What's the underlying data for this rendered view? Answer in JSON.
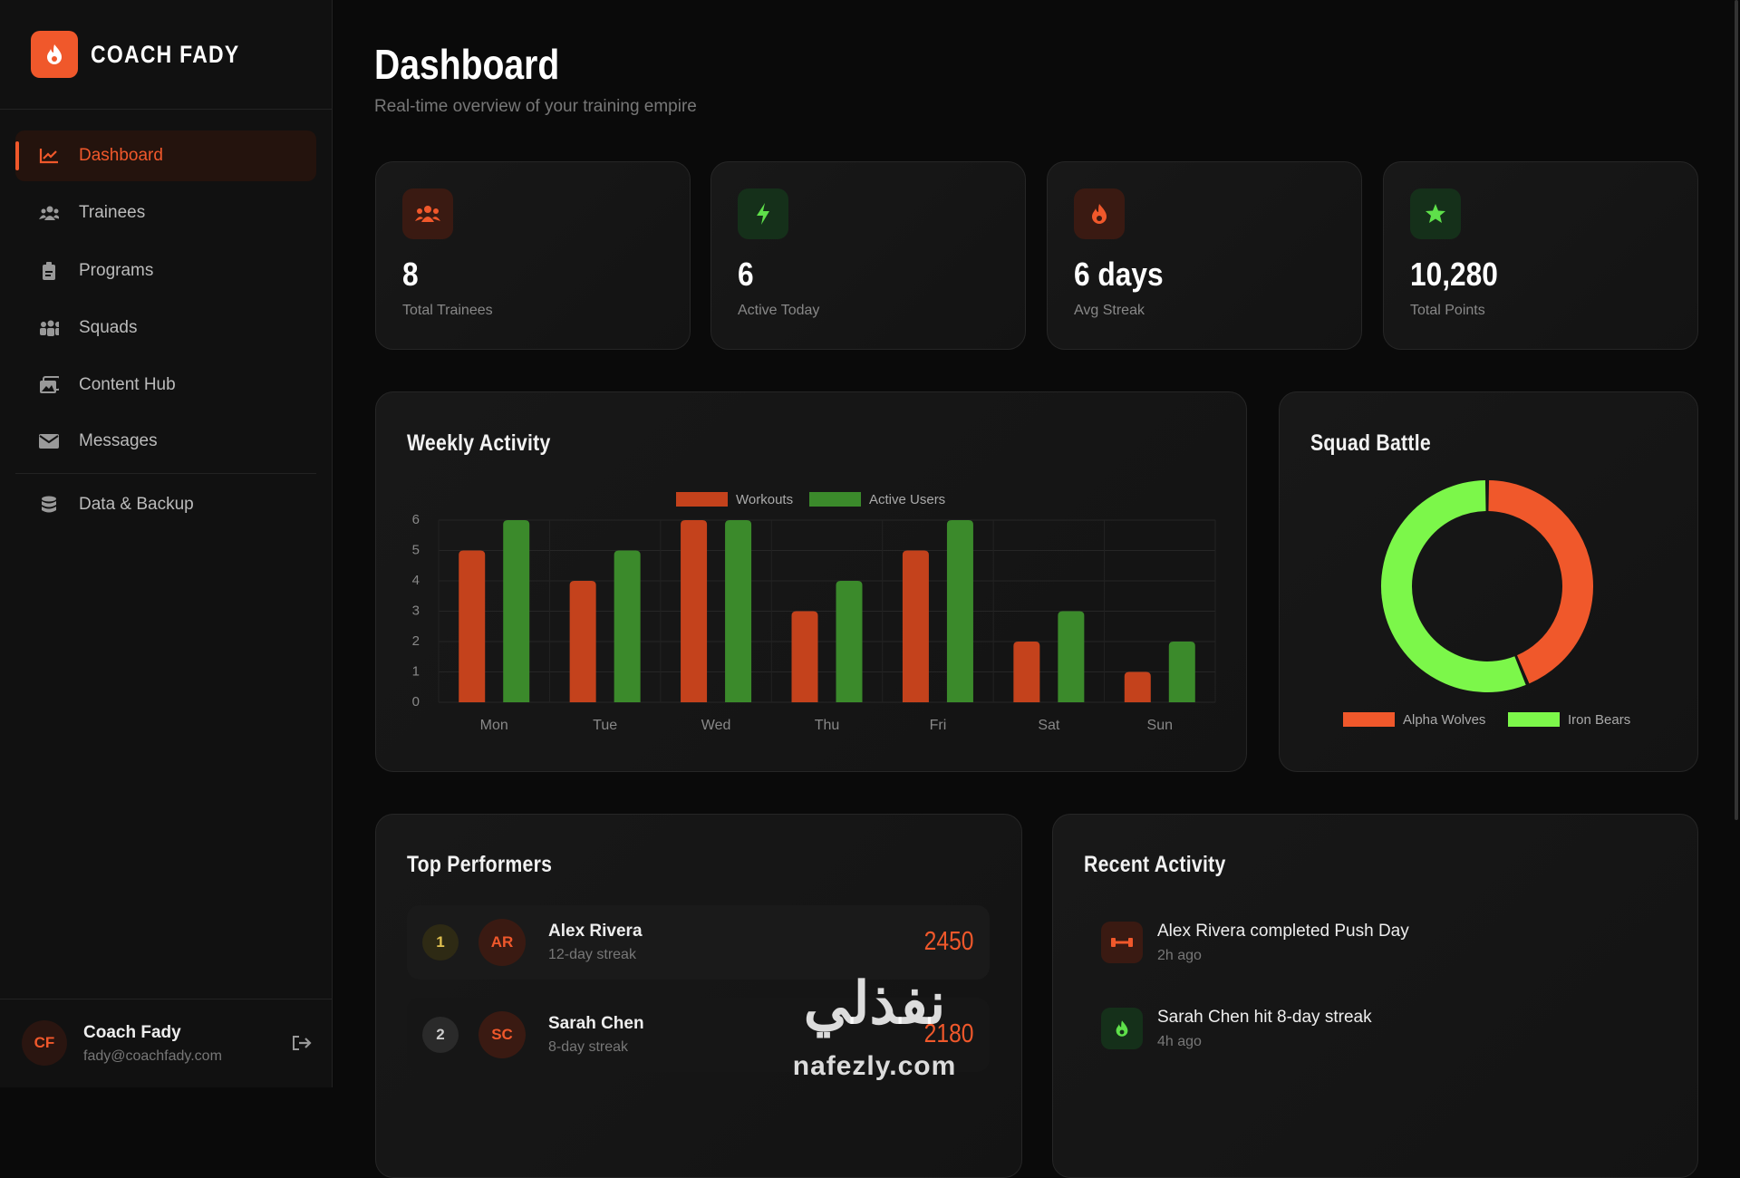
{
  "sidebar": {
    "brand": "COACH FADY",
    "nav": [
      "Dashboard",
      "Trainees",
      "Programs",
      "Squads",
      "Content Hub",
      "Messages",
      "Data & Backup"
    ],
    "user": {
      "initials": "CF",
      "name": "Coach Fady",
      "email": "fady@coachfady.com"
    }
  },
  "header": {
    "title": "Dashboard",
    "subtitle": "Real-time overview of your training empire"
  },
  "stats": [
    {
      "value": "8",
      "label": "Total Trainees"
    },
    {
      "value": "6",
      "label": "Active Today"
    },
    {
      "value": "6 days",
      "label": "Avg Streak"
    },
    {
      "value": "10,280",
      "label": "Total Points"
    }
  ],
  "chart_data": [
    {
      "type": "bar",
      "title": "Weekly Activity",
      "categories": [
        "Mon",
        "Tue",
        "Wed",
        "Thu",
        "Fri",
        "Sat",
        "Sun"
      ],
      "series": [
        {
          "name": "Workouts",
          "color": "#c4421c",
          "values": [
            5,
            4,
            6,
            3,
            5,
            2,
            1
          ]
        },
        {
          "name": "Active Users",
          "color": "#3b8a2b",
          "values": [
            6,
            5,
            6,
            4,
            6,
            3,
            2
          ]
        }
      ],
      "ylim": [
        0,
        6
      ],
      "yticks": [
        0,
        1,
        2,
        3,
        4,
        5,
        6
      ],
      "grid": true,
      "legend": "top"
    },
    {
      "type": "donut",
      "title": "Squad Battle",
      "categories": [
        "Alpha Wolves",
        "Iron Bears"
      ],
      "values": [
        4500,
        5780
      ],
      "colors": [
        "#f0582b",
        "#7cf74a"
      ],
      "legend": "bottom"
    }
  ],
  "top_performers": {
    "title": "Top Performers",
    "rows": [
      {
        "rank": 1,
        "initials": "AR",
        "name": "Alex Rivera",
        "streak": "12-day streak",
        "points": 2450
      },
      {
        "rank": 2,
        "initials": "SC",
        "name": "Sarah Chen",
        "streak": "8-day streak",
        "points": 2180
      }
    ]
  },
  "recent_activity": {
    "title": "Recent Activity",
    "items": [
      {
        "text": "Alex Rivera completed Push Day",
        "time": "2h ago"
      },
      {
        "text": "Sarah Chen hit 8-day streak",
        "time": "4h ago"
      }
    ]
  },
  "watermark": {
    "arabic": "نفذلي",
    "latin": "nafezly.com"
  }
}
